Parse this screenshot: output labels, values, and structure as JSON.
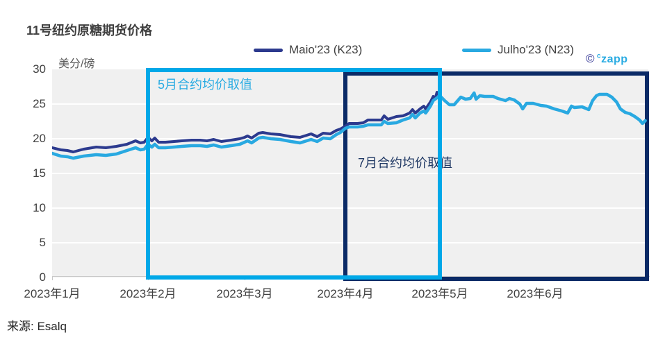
{
  "title": "11号纽约原糖期货价格",
  "source": "来源: Esalq",
  "watermark": {
    "copyright": "©",
    "sup": "c",
    "brand": "zapp"
  },
  "chart_data": {
    "type": "line",
    "title": "11号纽约原糖期货价格",
    "y_unit": "美分/磅",
    "ylim": [
      0,
      30
    ],
    "y_ticks": [
      30,
      25,
      20,
      15,
      10,
      5,
      0
    ],
    "x_ticks": [
      "2023年1月",
      "2023年2月",
      "2023年3月",
      "2023年4月",
      "2023年5月",
      "2023年6月"
    ],
    "x_encoding": "months since 2023-01-01 (0 = 2023年1月)",
    "xlim": [
      0,
      6.2
    ],
    "grid": "horizontal white gridlines on light-gray panel",
    "legend_position": "top-center",
    "series": [
      {
        "name": "Maio'23 (K23)",
        "color": "#2C3A8E",
        "points": [
          [
            0.0,
            18.7
          ],
          [
            0.09,
            18.4
          ],
          [
            0.16,
            18.3
          ],
          [
            0.22,
            18.1
          ],
          [
            0.33,
            18.5
          ],
          [
            0.46,
            18.8
          ],
          [
            0.56,
            18.7
          ],
          [
            0.67,
            18.9
          ],
          [
            0.78,
            19.2
          ],
          [
            0.87,
            19.7
          ],
          [
            0.92,
            19.4
          ],
          [
            0.96,
            19.5
          ],
          [
            1.0,
            20.2
          ],
          [
            1.04,
            19.7
          ],
          [
            1.07,
            20.1
          ],
          [
            1.11,
            19.5
          ],
          [
            1.18,
            19.5
          ],
          [
            1.27,
            19.6
          ],
          [
            1.35,
            19.7
          ],
          [
            1.45,
            19.8
          ],
          [
            1.54,
            19.8
          ],
          [
            1.61,
            19.7
          ],
          [
            1.68,
            19.9
          ],
          [
            1.76,
            19.6
          ],
          [
            1.86,
            19.8
          ],
          [
            1.95,
            20.0
          ],
          [
            2.0,
            20.2
          ],
          [
            2.03,
            20.4
          ],
          [
            2.07,
            20.1
          ],
          [
            2.14,
            20.8
          ],
          [
            2.18,
            20.9
          ],
          [
            2.26,
            20.7
          ],
          [
            2.35,
            20.6
          ],
          [
            2.46,
            20.3
          ],
          [
            2.55,
            20.2
          ],
          [
            2.66,
            20.7
          ],
          [
            2.72,
            20.3
          ],
          [
            2.78,
            20.8
          ],
          [
            2.85,
            20.7
          ],
          [
            2.91,
            21.2
          ],
          [
            2.95,
            21.4
          ],
          [
            3.0,
            21.8
          ],
          [
            3.04,
            22.2
          ],
          [
            3.13,
            22.2
          ],
          [
            3.19,
            22.3
          ],
          [
            3.24,
            22.7
          ],
          [
            3.38,
            22.7
          ],
          [
            3.41,
            23.3
          ],
          [
            3.45,
            22.8
          ],
          [
            3.54,
            23.2
          ],
          [
            3.61,
            23.3
          ],
          [
            3.68,
            23.7
          ],
          [
            3.71,
            24.2
          ],
          [
            3.74,
            23.7
          ],
          [
            3.79,
            24.3
          ],
          [
            3.83,
            24.7
          ],
          [
            3.85,
            24.3
          ],
          [
            3.9,
            25.3
          ],
          [
            3.93,
            26.1
          ],
          [
            3.95,
            25.8
          ],
          [
            3.97,
            26.7
          ],
          [
            3.99,
            26.4
          ],
          [
            4.0,
            27.0
          ]
        ]
      },
      {
        "name": "Julho'23 (N23)",
        "color": "#29A9E1",
        "points": [
          [
            0.0,
            17.9
          ],
          [
            0.09,
            17.5
          ],
          [
            0.16,
            17.4
          ],
          [
            0.22,
            17.2
          ],
          [
            0.33,
            17.5
          ],
          [
            0.46,
            17.7
          ],
          [
            0.56,
            17.6
          ],
          [
            0.67,
            17.8
          ],
          [
            0.78,
            18.3
          ],
          [
            0.87,
            18.7
          ],
          [
            0.92,
            18.4
          ],
          [
            0.96,
            18.5
          ],
          [
            1.0,
            19.2
          ],
          [
            1.04,
            18.8
          ],
          [
            1.07,
            19.2
          ],
          [
            1.11,
            18.7
          ],
          [
            1.18,
            18.7
          ],
          [
            1.27,
            18.8
          ],
          [
            1.35,
            18.9
          ],
          [
            1.45,
            19.0
          ],
          [
            1.54,
            19.0
          ],
          [
            1.61,
            18.9
          ],
          [
            1.68,
            19.1
          ],
          [
            1.76,
            18.8
          ],
          [
            1.86,
            19.0
          ],
          [
            1.95,
            19.2
          ],
          [
            2.0,
            19.5
          ],
          [
            2.03,
            19.7
          ],
          [
            2.07,
            19.4
          ],
          [
            2.14,
            20.1
          ],
          [
            2.18,
            20.2
          ],
          [
            2.26,
            20.0
          ],
          [
            2.35,
            19.9
          ],
          [
            2.46,
            19.6
          ],
          [
            2.55,
            19.4
          ],
          [
            2.66,
            19.9
          ],
          [
            2.72,
            19.6
          ],
          [
            2.78,
            20.1
          ],
          [
            2.85,
            20.0
          ],
          [
            2.91,
            20.6
          ],
          [
            2.95,
            20.9
          ],
          [
            3.0,
            21.5
          ],
          [
            3.04,
            21.7
          ],
          [
            3.13,
            21.7
          ],
          [
            3.19,
            21.8
          ],
          [
            3.24,
            22.0
          ],
          [
            3.38,
            22.0
          ],
          [
            3.41,
            22.5
          ],
          [
            3.45,
            22.2
          ],
          [
            3.54,
            22.3
          ],
          [
            3.61,
            22.7
          ],
          [
            3.68,
            23.0
          ],
          [
            3.71,
            23.5
          ],
          [
            3.74,
            23.0
          ],
          [
            3.79,
            23.7
          ],
          [
            3.83,
            24.0
          ],
          [
            3.85,
            23.7
          ],
          [
            3.9,
            24.7
          ],
          [
            3.93,
            25.5
          ],
          [
            3.97,
            25.9
          ],
          [
            4.0,
            26.2
          ],
          [
            4.05,
            25.5
          ],
          [
            4.1,
            24.9
          ],
          [
            4.15,
            24.9
          ],
          [
            4.22,
            26.0
          ],
          [
            4.27,
            25.7
          ],
          [
            4.32,
            25.8
          ],
          [
            4.36,
            26.6
          ],
          [
            4.38,
            25.7
          ],
          [
            4.42,
            26.2
          ],
          [
            4.47,
            26.1
          ],
          [
            4.56,
            26.1
          ],
          [
            4.61,
            25.8
          ],
          [
            4.69,
            25.5
          ],
          [
            4.73,
            25.8
          ],
          [
            4.78,
            25.6
          ],
          [
            4.84,
            25.0
          ],
          [
            4.87,
            24.3
          ],
          [
            4.91,
            25.1
          ],
          [
            4.98,
            25.1
          ],
          [
            5.06,
            24.8
          ],
          [
            5.12,
            24.7
          ],
          [
            5.2,
            24.3
          ],
          [
            5.28,
            24.0
          ],
          [
            5.34,
            23.7
          ],
          [
            5.38,
            24.7
          ],
          [
            5.41,
            24.5
          ],
          [
            5.49,
            24.6
          ],
          [
            5.56,
            24.2
          ],
          [
            5.6,
            25.5
          ],
          [
            5.64,
            26.2
          ],
          [
            5.67,
            26.4
          ],
          [
            5.75,
            26.4
          ],
          [
            5.8,
            26.0
          ],
          [
            5.85,
            25.3
          ],
          [
            5.89,
            24.3
          ],
          [
            5.94,
            23.8
          ],
          [
            5.99,
            23.6
          ],
          [
            6.04,
            23.2
          ],
          [
            6.09,
            22.7
          ],
          [
            6.12,
            22.2
          ],
          [
            6.15,
            22.6
          ]
        ]
      }
    ],
    "annotations": [
      {
        "id": "may-window",
        "label": "5月合约均价取值",
        "box_color": "#00A8E8",
        "text_color": "#29ABE2",
        "x_from": 1.0,
        "x_to": 4.0,
        "label_offset": [
          14,
          10
        ]
      },
      {
        "id": "july-window",
        "label": "7月合约均价取值",
        "box_color": "#0A2A66",
        "text_color": "#1F3864",
        "x_from": 3.0,
        "x_to": 6.17,
        "label_offset": [
          18,
          118
        ]
      }
    ]
  }
}
